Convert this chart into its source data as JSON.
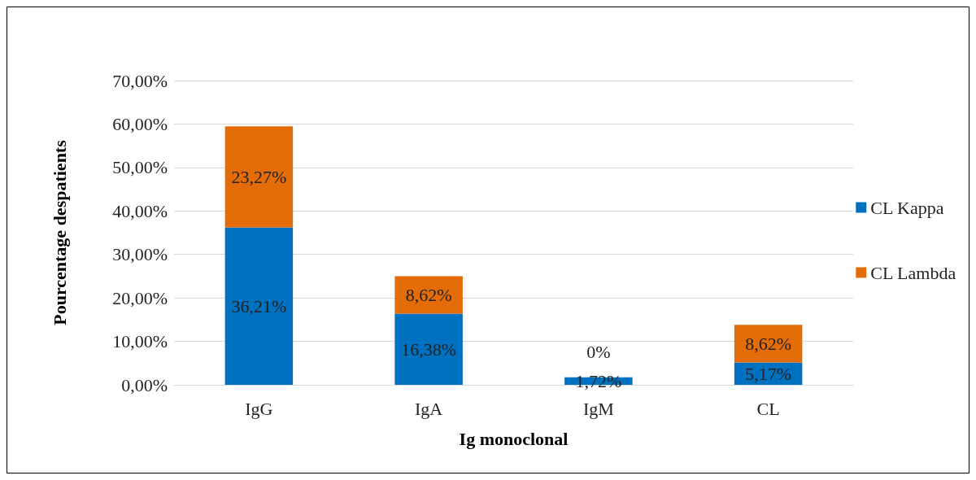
{
  "chart_data": {
    "type": "bar",
    "stacked": true,
    "xlabel": "Ig monoclonal",
    "ylabel": "Pourcentage despatients",
    "categories": [
      "IgG",
      "IgA",
      "IgM",
      "CL"
    ],
    "series": [
      {
        "name": "CL Kappa",
        "color": "#0070c0",
        "values": [
          36.21,
          16.38,
          1.72,
          5.17
        ],
        "value_labels": [
          "36,21%",
          "16,38%",
          "1,72%",
          "5,17%"
        ]
      },
      {
        "name": "CL Lambda",
        "color": "#e36c09",
        "values": [
          23.27,
          8.62,
          0,
          8.62
        ],
        "value_labels": [
          "23,27%",
          "8,62%",
          "0%",
          "8,62%"
        ]
      }
    ],
    "ylim": [
      0,
      70
    ],
    "yticks": [
      {
        "value": 0,
        "label": "0,00%"
      },
      {
        "value": 10,
        "label": "10,00%"
      },
      {
        "value": 20,
        "label": "20,00%"
      },
      {
        "value": 30,
        "label": "30,00%"
      },
      {
        "value": 40,
        "label": "40,00%"
      },
      {
        "value": 50,
        "label": "50,00%"
      },
      {
        "value": 60,
        "label": "60,00%"
      },
      {
        "value": 70,
        "label": "70,00%"
      }
    ],
    "grid": "y",
    "legend": "right"
  }
}
